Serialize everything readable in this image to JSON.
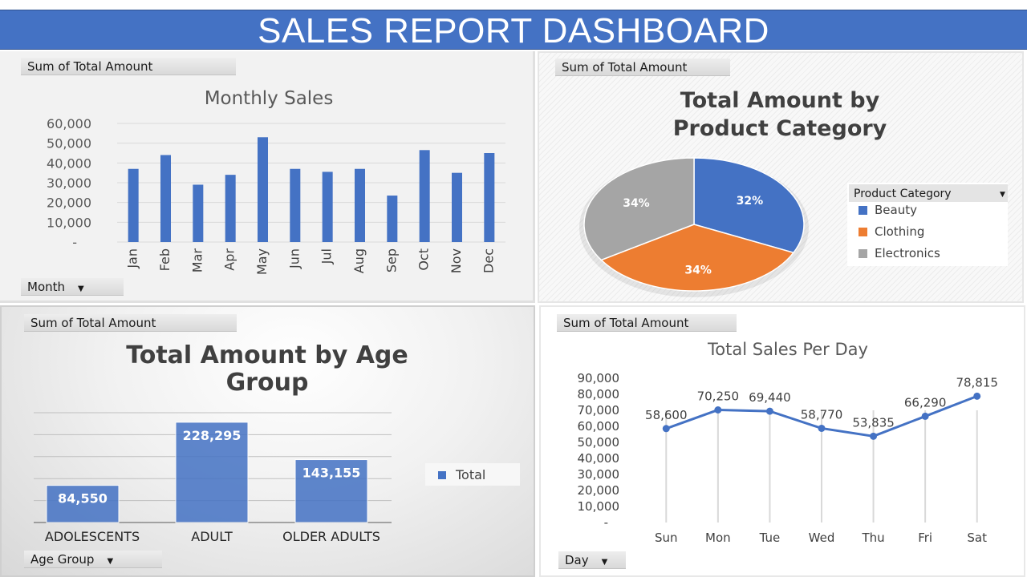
{
  "dashboard": {
    "title": "SALES REPORT DASHBOARD"
  },
  "fields": {
    "value_field": "Sum of Total Amount",
    "month": "Month",
    "age_group": "Age Group",
    "day": "Day",
    "product_category": "Product Category"
  },
  "icons": {
    "dropdown": "dropdown-arrow-icon"
  },
  "colors": {
    "banner": "#4472c4",
    "series_blue": "#4472c4",
    "orange": "#ed7d31",
    "gray": "#a5a5a5"
  },
  "chart_data": [
    {
      "type": "bar",
      "title": "Monthly Sales",
      "categories": [
        "Jan",
        "Feb",
        "Mar",
        "Apr",
        "May",
        "Jun",
        "Jul",
        "Aug",
        "Sep",
        "Oct",
        "Nov",
        "Dec"
      ],
      "values": [
        37000,
        44000,
        29000,
        34000,
        53000,
        37000,
        35500,
        37000,
        23500,
        46500,
        35000,
        45000
      ],
      "yticks": [
        "-",
        "10,000",
        "20,000",
        "30,000",
        "40,000",
        "50,000",
        "60,000"
      ],
      "ylim": [
        0,
        60000
      ],
      "grid": true
    },
    {
      "type": "pie",
      "title": "Total Amount by Product Category",
      "legend_title": "Product Category",
      "legend_position": "right",
      "categories": [
        "Beauty",
        "Clothing",
        "Electronics"
      ],
      "values": [
        32,
        34,
        34
      ],
      "labels": [
        "32%",
        "34%",
        "34%"
      ],
      "colors": [
        "#4472c4",
        "#ed7d31",
        "#a5a5a5"
      ]
    },
    {
      "type": "bar",
      "title": "Total Amount by Age Group",
      "categories": [
        "ADOLESCENTS",
        "ADULT",
        "OLDER ADULTS"
      ],
      "values": [
        84550,
        228295,
        143155
      ],
      "labels": [
        "84,550",
        "228,295",
        "143,155"
      ],
      "series": [
        {
          "name": "Total",
          "values": [
            84550,
            228295,
            143155
          ]
        }
      ],
      "legend_position": "right",
      "ylim": [
        0,
        250000
      ],
      "grid": true
    },
    {
      "type": "line",
      "title": "Total Sales Per Day",
      "categories": [
        "Sun",
        "Mon",
        "Tue",
        "Wed",
        "Thu",
        "Fri",
        "Sat"
      ],
      "values": [
        58600,
        70250,
        69440,
        58770,
        53835,
        66290,
        78815
      ],
      "labels": [
        "58,600",
        "70,250",
        "69,440",
        "58,770",
        "53,835",
        "66,290",
        "78,815"
      ],
      "yticks": [
        "-",
        "10,000",
        "20,000",
        "30,000",
        "40,000",
        "50,000",
        "60,000",
        "70,000",
        "80,000",
        "90,000"
      ],
      "ylim": [
        0,
        90000
      ],
      "grid": true
    }
  ]
}
